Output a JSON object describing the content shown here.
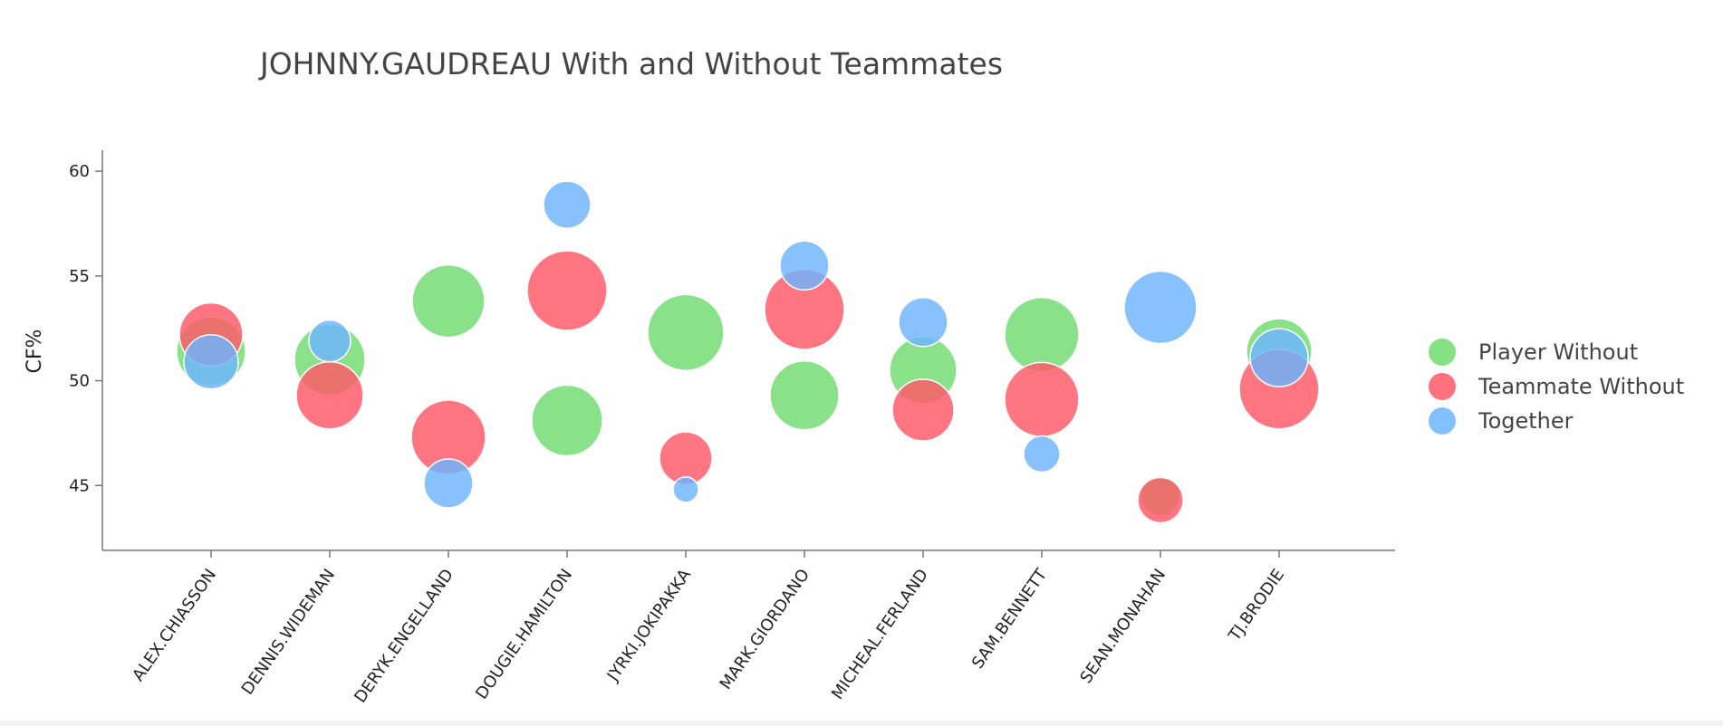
{
  "chart_data": {
    "type": "scatter",
    "title": "JOHNNY.GAUDREAU With and Without Teammates",
    "ylabel": "CF%",
    "xlabel": "",
    "ylim": [
      41.9,
      61.0
    ],
    "yticks": [
      45,
      50,
      55,
      60
    ],
    "grid": false,
    "legend_position": "right",
    "categories": [
      "ALEX.CHIASSON",
      "DENNIS.WIDEMAN",
      "DERYK.ENGELLAND",
      "DOUGIE.HAMILTON",
      "JYRKI.JOKIPAKKA",
      "MARK.GIORDANO",
      "MICHEAL.FERLAND",
      "SAM.BENNETT",
      "SEAN.MONAHAN",
      "TJ.BRODIE"
    ],
    "series": [
      {
        "name": "Player Without",
        "color": "#6fdc6f",
        "values": [
          51.4,
          51.0,
          53.8,
          48.1,
          52.3,
          49.3,
          50.5,
          52.2,
          44.5,
          51.4
        ],
        "sizes": [
          38,
          39,
          40,
          39,
          42,
          38,
          37,
          41,
          22,
          36
        ]
      },
      {
        "name": "Teammate Without",
        "color": "#ff5866",
        "values": [
          52.2,
          49.3,
          47.3,
          54.3,
          46.3,
          53.4,
          48.6,
          49.1,
          44.3,
          49.6
        ],
        "sizes": [
          35,
          37,
          41,
          44,
          29,
          44,
          34,
          41,
          25,
          44
        ]
      },
      {
        "name": "Together",
        "color": "#6db5ff",
        "values": [
          50.9,
          51.9,
          45.1,
          58.4,
          44.8,
          55.5,
          52.8,
          46.5,
          53.5,
          51.1
        ],
        "sizes": [
          30,
          23,
          27,
          26,
          14,
          27,
          27,
          20,
          40,
          32
        ]
      }
    ]
  }
}
